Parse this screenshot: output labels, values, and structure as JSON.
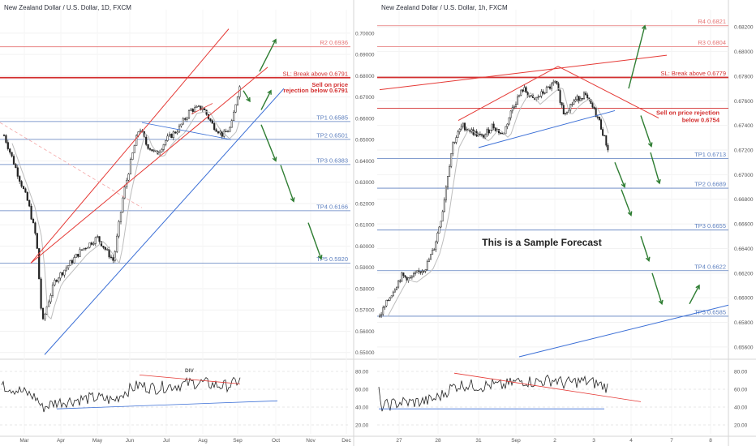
{
  "chart_data": [
    {
      "type": "candlestick",
      "title": "New Zealand Dollar / U.S. Dollar, 1D, FXCM",
      "x_ticks": [
        "Mar",
        "Apr",
        "May",
        "Jun",
        "Jul",
        "Aug",
        "Sep",
        "Oct",
        "Nov",
        "Dec"
      ],
      "y_ticks": [
        "0.70000",
        "0.69000",
        "0.68000",
        "0.67000",
        "0.66000",
        "0.65000",
        "0.64000",
        "0.63000",
        "0.62000",
        "0.61000",
        "0.60000",
        "0.59000",
        "0.58000",
        "0.57000",
        "0.56000",
        "0.55000"
      ],
      "ylim": [
        0.548,
        0.711
      ],
      "levels": [
        {
          "label": "R2 0.6936",
          "value": 0.6936,
          "color": "#e57373"
        },
        {
          "label": "SL: Break above 0.6791",
          "value": 0.6791,
          "color": "#d32f2f"
        },
        {
          "label": "TP1 0.6585",
          "value": 0.6585,
          "color": "#5c7fbf"
        },
        {
          "label": "TP2 0.6501",
          "value": 0.6501,
          "color": "#5c7fbf"
        },
        {
          "label": "TP3 0.6383",
          "value": 0.6383,
          "color": "#5c7fbf"
        },
        {
          "label": "TP4 0.6166",
          "value": 0.6166,
          "color": "#5c7fbf"
        },
        {
          "label": "TP5 0.5920",
          "value": 0.592,
          "color": "#5c7fbf"
        }
      ],
      "annotation": [
        "Sell on price",
        "rejection below 0.6791"
      ],
      "indicator": {
        "label": "DIV",
        "y_ticks": [
          "80.00",
          "60.00",
          "40.00",
          "20.00"
        ],
        "ylim": [
          10,
          90
        ]
      }
    },
    {
      "type": "candlestick",
      "title": "New Zealand Dollar / U.S. Dollar, 1h, FXCM",
      "x_ticks": [
        "27",
        "28",
        "31",
        "Sep",
        "2",
        "3",
        "4",
        "7",
        "8"
      ],
      "y_ticks": [
        "0.68200",
        "0.68000",
        "0.67800",
        "0.67600",
        "0.67400",
        "0.67200",
        "0.67000",
        "0.66800",
        "0.66600",
        "0.66400",
        "0.66200",
        "0.66000",
        "0.65800",
        "0.65600"
      ],
      "ylim": [
        0.6552,
        0.6834
      ],
      "levels": [
        {
          "label": "R4 0.6821",
          "value": 0.6821,
          "color": "#e57373"
        },
        {
          "label": "R3 0.6804",
          "value": 0.6804,
          "color": "#e57373"
        },
        {
          "label": "SL: Break above 0.6779",
          "value": 0.6779,
          "color": "#d32f2f"
        },
        {
          "label": "TP1 0.6713",
          "value": 0.6713,
          "color": "#5c7fbf"
        },
        {
          "label": "TP2 0.6689",
          "value": 0.6689,
          "color": "#5c7fbf"
        },
        {
          "label": "TP3 0.6655",
          "value": 0.6655,
          "color": "#5c7fbf"
        },
        {
          "label": "TP4 0.6622",
          "value": 0.6622,
          "color": "#5c7fbf"
        },
        {
          "label": "TP5 0.6585",
          "value": 0.6585,
          "color": "#5c7fbf"
        }
      ],
      "entry_line": 0.6754,
      "annotation": [
        "Sell on price rejection",
        "below 0.6754"
      ],
      "center_text": "This is a Sample Forecast",
      "indicator": {
        "y_ticks": [
          "80.00",
          "60.00",
          "40.00",
          "20.00"
        ],
        "ylim": [
          10,
          90
        ]
      }
    }
  ]
}
